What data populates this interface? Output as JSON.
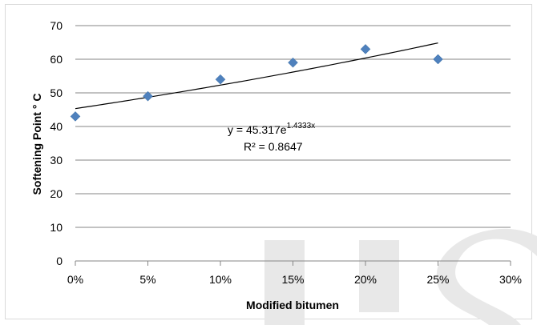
{
  "chart_data": {
    "type": "scatter",
    "title": "",
    "xlabel": "Modified bitumen",
    "ylabel": "Softening Point ° C",
    "xlim": [
      0,
      30
    ],
    "ylim": [
      0,
      70
    ],
    "x_ticks": [
      "0%",
      "5%",
      "10%",
      "15%",
      "20%",
      "25%",
      "30%"
    ],
    "y_ticks": [
      "0",
      "10",
      "20",
      "30",
      "40",
      "50",
      "60",
      "70"
    ],
    "grid": "horizontal",
    "legend": "none",
    "series": [
      {
        "marker": "diamond",
        "color": "#4f81bd",
        "points": [
          {
            "x": 0,
            "y": 43
          },
          {
            "x": 5,
            "y": 49
          },
          {
            "x": 10,
            "y": 54
          },
          {
            "x": 15,
            "y": 59
          },
          {
            "x": 20,
            "y": 63
          },
          {
            "x": 25,
            "y": 60
          }
        ]
      }
    ],
    "trendline": {
      "type": "exponential",
      "a": 45.317,
      "b": 1.4333,
      "x_range": [
        0,
        25
      ],
      "equation_base": "y = 45.317e",
      "equation_exponent": "1.4333x",
      "r_squared": "R² = 0.8647"
    }
  },
  "watermark": {
    "text": "IJS",
    "color": "#e8e8e8"
  }
}
